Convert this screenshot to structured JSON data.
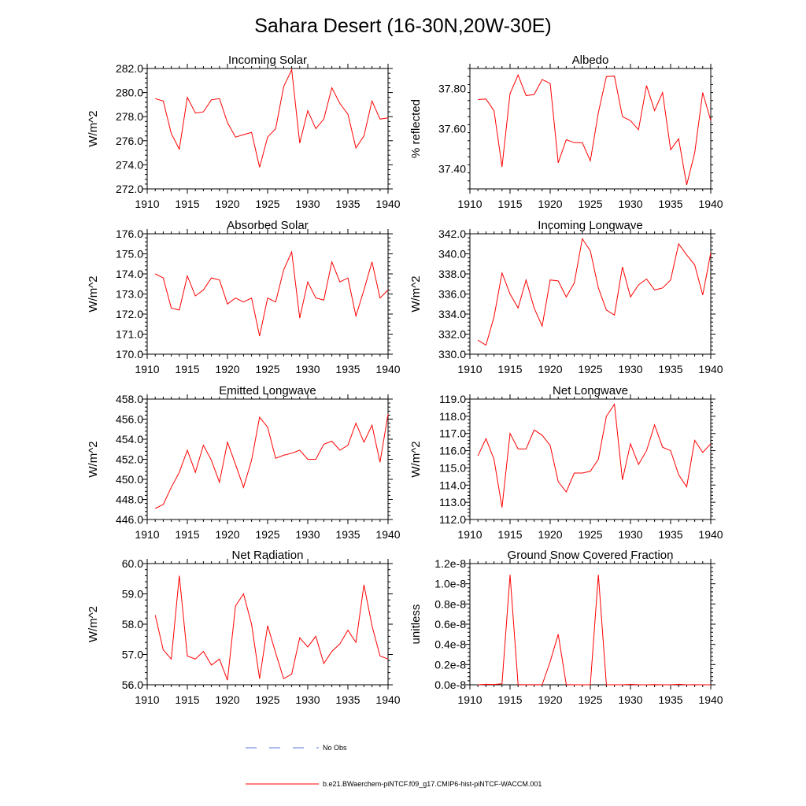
{
  "figure": {
    "title": "Sahara Desert (16-30N,20W-30E)"
  },
  "legend": {
    "obs_label": "No Obs",
    "obs_color": "#5a6fd8",
    "model_label": "b.e21.BWaerchem-piNTCF.f09_g17.CMIP6-hist-piNTCF-WACCM.001",
    "model_color": "#ff0000"
  },
  "chart_data": [
    {
      "type": "line",
      "title": "Incoming Solar",
      "ylabel": "W/m^2",
      "xlim": [
        1910,
        1940
      ],
      "ylim": [
        272,
        282
      ],
      "xticks": [
        1910,
        1915,
        1920,
        1925,
        1930,
        1935,
        1940
      ],
      "yticks": [
        "272.0",
        "274.0",
        "276.0",
        "278.0",
        "280.0",
        "282.0"
      ],
      "x": [
        1911,
        1912,
        1913,
        1914,
        1915,
        1916,
        1917,
        1918,
        1919,
        1920,
        1921,
        1922,
        1923,
        1924,
        1925,
        1926,
        1927,
        1928,
        1929,
        1930,
        1931,
        1932,
        1933,
        1934,
        1935,
        1936,
        1937,
        1938,
        1939,
        1940
      ],
      "series": [
        {
          "values": [
            279.5,
            279.3,
            276.6,
            275.3,
            279.6,
            278.3,
            278.4,
            279.4,
            279.5,
            277.5,
            276.3,
            276.5,
            276.7,
            273.8,
            276.3,
            277.0,
            280.5,
            281.9,
            275.8,
            278.5,
            277.0,
            277.8,
            280.4,
            279.1,
            278.2,
            275.4,
            276.4,
            279.3,
            277.8,
            277.9
          ]
        }
      ]
    },
    {
      "type": "line",
      "title": "Albedo",
      "ylabel": "% reflected",
      "xlim": [
        1910,
        1940
      ],
      "ylim": [
        37.3,
        37.9
      ],
      "xticks": [
        1910,
        1915,
        1920,
        1925,
        1930,
        1935,
        1940
      ],
      "yticks": [
        "37.40",
        "37.60",
        "37.80"
      ],
      "ytick_values": [
        37.4,
        37.6,
        37.8
      ],
      "x": [
        1911,
        1912,
        1913,
        1914,
        1915,
        1916,
        1917,
        1918,
        1919,
        1920,
        1921,
        1922,
        1923,
        1924,
        1925,
        1926,
        1927,
        1928,
        1929,
        1930,
        1931,
        1932,
        1933,
        1934,
        1935,
        1936,
        1937,
        1938,
        1939,
        1940
      ],
      "series": [
        {
          "values": [
            37.745,
            37.748,
            37.69,
            37.41,
            37.775,
            37.868,
            37.765,
            37.77,
            37.845,
            37.825,
            37.43,
            37.545,
            37.53,
            37.53,
            37.44,
            37.68,
            37.86,
            37.862,
            37.66,
            37.64,
            37.595,
            37.815,
            37.69,
            37.78,
            37.495,
            37.55,
            37.32,
            37.48,
            37.78,
            37.64
          ]
        }
      ]
    },
    {
      "type": "line",
      "title": "Absorbed Solar",
      "ylabel": "W/m^2",
      "xlim": [
        1910,
        1940
      ],
      "ylim": [
        170,
        176
      ],
      "xticks": [
        1910,
        1915,
        1920,
        1925,
        1930,
        1935,
        1940
      ],
      "yticks": [
        "170.0",
        "171.0",
        "172.0",
        "173.0",
        "174.0",
        "175.0",
        "176.0"
      ],
      "x": [
        1911,
        1912,
        1913,
        1914,
        1915,
        1916,
        1917,
        1918,
        1919,
        1920,
        1921,
        1922,
        1923,
        1924,
        1925,
        1926,
        1927,
        1928,
        1929,
        1930,
        1931,
        1932,
        1933,
        1934,
        1935,
        1936,
        1937,
        1938,
        1939,
        1940
      ],
      "series": [
        {
          "values": [
            174.0,
            173.8,
            172.3,
            172.2,
            173.9,
            172.9,
            173.2,
            173.8,
            173.7,
            172.5,
            172.8,
            172.6,
            172.8,
            170.9,
            172.8,
            172.6,
            174.2,
            175.1,
            171.8,
            173.6,
            172.8,
            172.7,
            174.6,
            173.6,
            173.8,
            171.9,
            173.2,
            174.6,
            172.8,
            173.2
          ]
        }
      ]
    },
    {
      "type": "line",
      "title": "Incoming Longwave",
      "ylabel": "W/m^2",
      "xlim": [
        1910,
        1940
      ],
      "ylim": [
        330,
        342
      ],
      "xticks": [
        1910,
        1915,
        1920,
        1925,
        1930,
        1935,
        1940
      ],
      "yticks": [
        "330.0",
        "332.0",
        "334.0",
        "336.0",
        "338.0",
        "340.0",
        "342.0"
      ],
      "x": [
        1911,
        1912,
        1913,
        1914,
        1915,
        1916,
        1917,
        1918,
        1919,
        1920,
        1921,
        1922,
        1923,
        1924,
        1925,
        1926,
        1927,
        1928,
        1929,
        1930,
        1931,
        1932,
        1933,
        1934,
        1935,
        1936,
        1937,
        1938,
        1939,
        1940
      ],
      "series": [
        {
          "values": [
            331.4,
            330.9,
            333.7,
            338.1,
            336.0,
            334.6,
            337.4,
            334.6,
            332.8,
            337.4,
            337.3,
            335.7,
            337.1,
            341.5,
            340.3,
            336.6,
            334.4,
            333.9,
            338.7,
            335.7,
            336.9,
            337.5,
            336.4,
            336.6,
            337.4,
            341.0,
            339.9,
            338.9,
            335.9,
            340.1
          ]
        }
      ]
    },
    {
      "type": "line",
      "title": "Emitted Longwave",
      "ylabel": "W/m^2",
      "xlim": [
        1910,
        1940
      ],
      "ylim": [
        446,
        458
      ],
      "xticks": [
        1910,
        1915,
        1920,
        1925,
        1930,
        1935,
        1940
      ],
      "yticks": [
        "446.0",
        "448.0",
        "450.0",
        "452.0",
        "454.0",
        "456.0",
        "458.0"
      ],
      "x": [
        1911,
        1912,
        1913,
        1914,
        1915,
        1916,
        1917,
        1918,
        1919,
        1920,
        1921,
        1922,
        1923,
        1924,
        1925,
        1926,
        1927,
        1928,
        1929,
        1930,
        1931,
        1932,
        1933,
        1934,
        1935,
        1936,
        1937,
        1938,
        1939,
        1940
      ],
      "series": [
        {
          "values": [
            447.1,
            447.5,
            449.2,
            450.7,
            452.9,
            450.7,
            453.4,
            451.9,
            449.7,
            453.7,
            451.5,
            449.2,
            451.9,
            456.2,
            455.2,
            452.1,
            452.4,
            452.6,
            452.9,
            452.0,
            452.0,
            453.5,
            453.8,
            452.9,
            453.4,
            455.6,
            453.7,
            455.4,
            451.7,
            456.5
          ]
        }
      ]
    },
    {
      "type": "line",
      "title": "Net Longwave",
      "ylabel": "W/m^2",
      "xlim": [
        1910,
        1940
      ],
      "ylim": [
        112,
        119
      ],
      "xticks": [
        1910,
        1915,
        1920,
        1925,
        1930,
        1935,
        1940
      ],
      "yticks": [
        "112.0",
        "113.0",
        "114.0",
        "115.0",
        "116.0",
        "117.0",
        "118.0",
        "119.0"
      ],
      "x": [
        1911,
        1912,
        1913,
        1914,
        1915,
        1916,
        1917,
        1918,
        1919,
        1920,
        1921,
        1922,
        1923,
        1924,
        1925,
        1926,
        1927,
        1928,
        1929,
        1930,
        1931,
        1932,
        1933,
        1934,
        1935,
        1936,
        1937,
        1938,
        1939,
        1940
      ],
      "series": [
        {
          "values": [
            115.7,
            116.7,
            115.5,
            112.7,
            117.0,
            116.1,
            116.1,
            117.2,
            116.9,
            116.3,
            114.2,
            113.6,
            114.7,
            114.7,
            114.8,
            115.5,
            118.0,
            118.7,
            114.3,
            116.4,
            115.2,
            116.0,
            117.5,
            116.2,
            116.0,
            114.6,
            113.9,
            116.6,
            115.9,
            116.4
          ]
        }
      ]
    },
    {
      "type": "line",
      "title": "Net Radiation",
      "ylabel": "W/m^2",
      "xlim": [
        1910,
        1940
      ],
      "ylim": [
        56,
        60
      ],
      "xticks": [
        1910,
        1915,
        1920,
        1925,
        1930,
        1935,
        1940
      ],
      "yticks": [
        "56.0",
        "57.0",
        "58.0",
        "59.0",
        "60.0"
      ],
      "x": [
        1911,
        1912,
        1913,
        1914,
        1915,
        1916,
        1917,
        1918,
        1919,
        1920,
        1921,
        1922,
        1923,
        1924,
        1925,
        1926,
        1927,
        1928,
        1929,
        1930,
        1931,
        1932,
        1933,
        1934,
        1935,
        1936,
        1937,
        1938,
        1939,
        1940
      ],
      "series": [
        {
          "values": [
            58.3,
            57.15,
            56.85,
            59.6,
            56.95,
            56.85,
            57.1,
            56.65,
            56.85,
            56.15,
            58.6,
            59.0,
            58.0,
            56.2,
            57.95,
            57.05,
            56.2,
            56.35,
            57.55,
            57.25,
            57.6,
            56.7,
            57.1,
            57.35,
            57.8,
            57.4,
            59.3,
            57.95,
            56.95,
            56.85
          ]
        }
      ]
    },
    {
      "type": "line",
      "title": "Ground Snow Covered Fraction",
      "ylabel": "unitless",
      "xlim": [
        1910,
        1940
      ],
      "ylim": [
        0,
        1.2e-08
      ],
      "xticks": [
        1910,
        1915,
        1920,
        1925,
        1930,
        1935,
        1940
      ],
      "yticks": [
        "0.0e-8",
        "0.2e-8",
        "0.4e-8",
        "0.6e-8",
        "0.8e-8",
        "1.0e-8",
        "1.2e-8"
      ],
      "ytick_values": [
        0,
        2e-09,
        4e-09,
        6e-09,
        8e-09,
        1e-08,
        1.2e-08
      ],
      "x": [
        1911,
        1912,
        1913,
        1914,
        1915,
        1916,
        1917,
        1918,
        1919,
        1920,
        1921,
        1922,
        1923,
        1924,
        1925,
        1926,
        1927,
        1928,
        1929,
        1930,
        1931,
        1932,
        1933,
        1934,
        1935,
        1936,
        1937,
        1938,
        1939,
        1940
      ],
      "series": [
        {
          "values": [
            0,
            5e-11,
            3e-11,
            1e-10,
            1.09e-08,
            2e-11,
            1e-11,
            1e-11,
            1e-11,
            2.3e-09,
            5e-09,
            2e-11,
            0,
            0,
            0,
            1.09e-08,
            0,
            0,
            0,
            4e-11,
            1e-11,
            0,
            2e-11,
            0,
            0,
            5e-11,
            0,
            1e-11,
            0,
            0
          ]
        }
      ]
    }
  ]
}
